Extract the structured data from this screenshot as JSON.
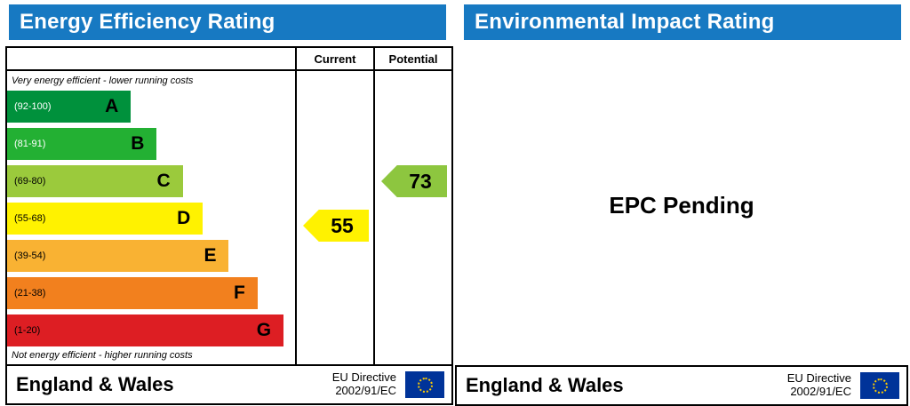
{
  "theme": {
    "header_bg": "#1779c2",
    "header_text": "#ffffff",
    "flag_bg": "#003399",
    "flag_stars": "#ffcc00"
  },
  "left_panel": {
    "title": "Energy Efficiency Rating",
    "columns": {
      "current": "Current",
      "potential": "Potential"
    },
    "top_caption": "Very energy efficient - lower running costs",
    "bottom_caption": "Not energy efficient - higher running costs",
    "bands": [
      {
        "letter": "A",
        "range": "(92-100)",
        "color": "#00913c",
        "width_pct": "43%"
      },
      {
        "letter": "B",
        "range": "(81-91)",
        "color": "#23b033",
        "width_pct": "52%"
      },
      {
        "letter": "C",
        "range": "(69-80)",
        "color": "#9bca3c",
        "width_pct": "61%"
      },
      {
        "letter": "D",
        "range": "(55-68)",
        "color": "#fff200",
        "width_pct": "68%"
      },
      {
        "letter": "E",
        "range": "(39-54)",
        "color": "#f9b233",
        "width_pct": "77%"
      },
      {
        "letter": "F",
        "range": "(21-38)",
        "color": "#f2801e",
        "width_pct": "87%"
      },
      {
        "letter": "G",
        "range": "(1-20)",
        "color": "#dd1e23",
        "width_pct": "96%"
      }
    ],
    "current": {
      "value": "55",
      "band": "D",
      "color": "#fff200"
    },
    "potential": {
      "value": "73",
      "band": "C",
      "color": "#8dc63f"
    },
    "footer": {
      "region": "England & Wales",
      "directive_line1": "EU Directive",
      "directive_line2": "2002/91/EC"
    }
  },
  "right_panel": {
    "title": "Environmental Impact Rating",
    "message": "EPC Pending",
    "footer": {
      "region": "England & Wales",
      "directive_line1": "EU Directive",
      "directive_line2": "2002/91/EC"
    }
  },
  "chart_data": {
    "type": "bar",
    "orientation": "horizontal",
    "title": "Energy Efficiency Rating",
    "categories": [
      "A",
      "B",
      "C",
      "D",
      "E",
      "F",
      "G"
    ],
    "category_ranges": [
      "92-100",
      "81-91",
      "69-80",
      "55-68",
      "39-54",
      "21-38",
      "1-20"
    ],
    "bar_colors": [
      "#00913c",
      "#23b033",
      "#9bca3c",
      "#fff200",
      "#f9b233",
      "#f2801e",
      "#dd1e23"
    ],
    "bar_lengths_pct": [
      43,
      52,
      61,
      68,
      77,
      87,
      96
    ],
    "series": [
      {
        "name": "Current",
        "value": 55,
        "band": "D",
        "color": "#fff200"
      },
      {
        "name": "Potential",
        "value": 73,
        "band": "C",
        "color": "#8dc63f"
      }
    ],
    "annotations": [
      "Very energy efficient - lower running costs",
      "Not energy efficient - higher running costs"
    ],
    "legend_position": "none",
    "grid": false,
    "companion_panel": {
      "title": "Environmental Impact Rating",
      "status": "EPC Pending",
      "data": null
    }
  }
}
